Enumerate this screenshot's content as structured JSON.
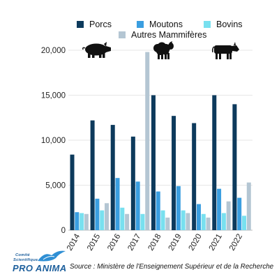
{
  "colors": {
    "porcs": "#0d3a5c",
    "moutons": "#3a9ee0",
    "bovins": "#78e0ef",
    "autres": "#b4c6d3"
  },
  "icons": [
    "pig-icon",
    "sheep-icon",
    "cow-icon",
    "bird-logo-icon"
  ],
  "legend": {
    "porcs": "Porcs",
    "moutons": "Moutons",
    "bovins": "Bovins",
    "autres": "Autres Mammifères"
  },
  "source": "Source : Ministère de l'Enseignement Supérieur et de la Recherche",
  "logo": {
    "line1": "Comité",
    "line2": "Scientifique",
    "line3": "PRO ANIMA"
  },
  "chart_data": {
    "type": "bar",
    "categories": [
      "2014",
      "2015",
      "2016",
      "2017",
      "2018",
      "2019",
      "2020",
      "2021",
      "2022"
    ],
    "series": [
      {
        "name": "Porcs",
        "values": [
          8400,
          12200,
          11700,
          10400,
          15000,
          12700,
          11900,
          15000,
          14000
        ]
      },
      {
        "name": "Moutons",
        "values": [
          2000,
          3500,
          5800,
          5400,
          4300,
          4900,
          2900,
          4600,
          3600
        ]
      },
      {
        "name": "Bovins",
        "values": [
          1900,
          2200,
          2500,
          1800,
          2200,
          2200,
          1800,
          1900,
          1600
        ]
      },
      {
        "name": "Autres Mammifères",
        "values": [
          1800,
          3000,
          1800,
          19800,
          1400,
          1900,
          1400,
          3200,
          5300
        ]
      }
    ],
    "yticks": [
      "0",
      "5,000",
      "10,000",
      "15,000",
      "20,000"
    ],
    "ylim": [
      0,
      20000
    ],
    "grid": true,
    "legend_position": "top"
  }
}
